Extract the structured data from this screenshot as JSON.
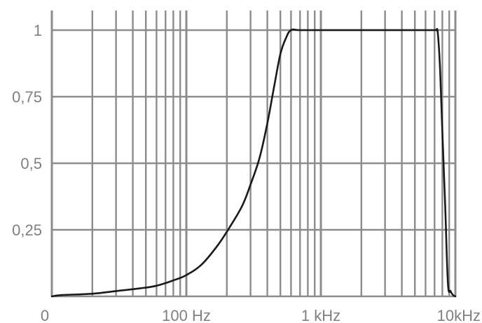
{
  "chart_data": {
    "type": "line",
    "title": "",
    "xlabel": "",
    "ylabel": "",
    "x_scale": "log",
    "xlim": [
      10,
      10000
    ],
    "ylim": [
      0,
      1
    ],
    "grid": true,
    "colors": {
      "grid": "#8c8c8c",
      "line": "#1a1a1a",
      "labels": "#808080"
    },
    "x_tick_labels": [
      {
        "value": 10,
        "label": "0"
      },
      {
        "value": 100,
        "label": "100 Hz"
      },
      {
        "value": 1000,
        "label": "1 kHz"
      },
      {
        "value": 10000,
        "label": "10kHz"
      }
    ],
    "y_tick_labels": [
      {
        "value": 1,
        "label": "1"
      },
      {
        "value": 0.75,
        "label": "0,75"
      },
      {
        "value": 0.5,
        "label": "0,5"
      },
      {
        "value": 0.25,
        "label": "0,25"
      }
    ],
    "series": [
      {
        "x": [
          10,
          12,
          20,
          30,
          45,
          60,
          80,
          100,
          130,
          170,
          210,
          260,
          300,
          350,
          400,
          450,
          500,
          550,
          600,
          700,
          1000,
          2000,
          4000,
          6000,
          7000,
          7200,
          7400,
          7700,
          8000,
          8400,
          8800,
          9200,
          9600,
          10000
        ],
        "y": [
          0,
          0.005,
          0.01,
          0.02,
          0.03,
          0.04,
          0.06,
          0.08,
          0.12,
          0.19,
          0.26,
          0.34,
          0.42,
          0.52,
          0.65,
          0.79,
          0.91,
          0.97,
          1.0,
          1.0,
          1.0,
          1.0,
          1.0,
          1.0,
          1.0,
          1.0,
          0.99,
          0.85,
          0.62,
          0.34,
          0.05,
          0.02,
          0.005,
          0
        ]
      }
    ]
  }
}
